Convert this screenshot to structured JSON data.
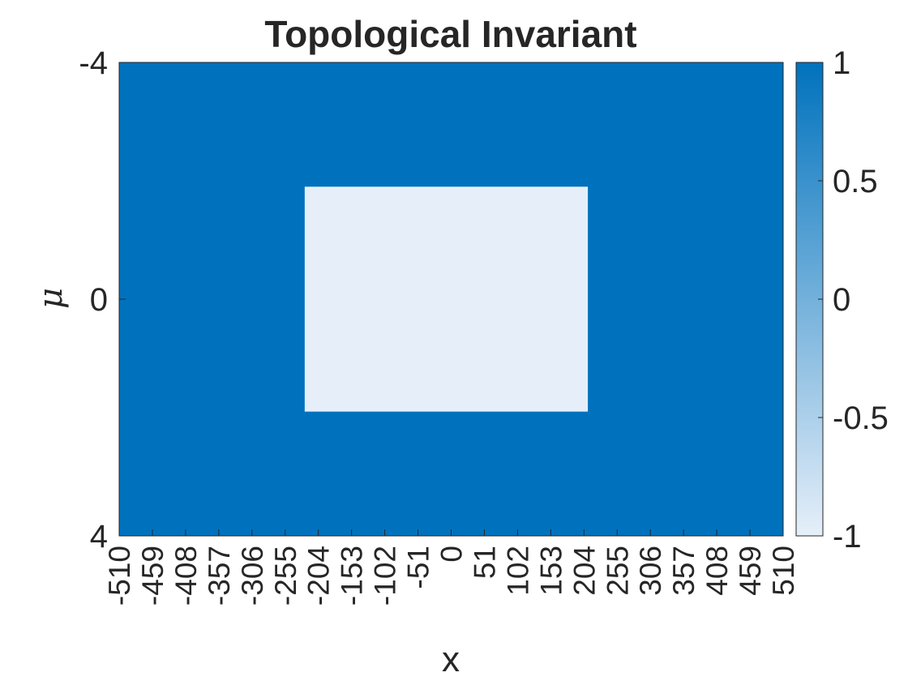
{
  "chart_data": {
    "type": "heatmap",
    "title": "Topological Invariant",
    "xlabel": "x",
    "ylabel": "μ",
    "xlim": [
      -510,
      510
    ],
    "ylim": [
      -4,
      4
    ],
    "y_reversed": true,
    "x_ticks": [
      "-510",
      "-459",
      "-408",
      "-357",
      "-306",
      "-255",
      "-204",
      "-153",
      "-102",
      "-51",
      "0",
      "51",
      "102",
      "153",
      "204",
      "255",
      "306",
      "357",
      "408",
      "459",
      "510"
    ],
    "y_ticks": [
      "-4",
      "0",
      "4"
    ],
    "background_value": 1,
    "regions": [
      {
        "x": [
          -225,
          210
        ],
        "y": [
          -1.9,
          1.9
        ],
        "value": -1
      }
    ],
    "colorbar": {
      "limits": [
        -1,
        1
      ],
      "ticks": [
        "1",
        "0.5",
        "0",
        "-0.5",
        "-1"
      ],
      "color_min": "#e6eff9",
      "color_max": "#0072bd"
    },
    "grid": false
  }
}
